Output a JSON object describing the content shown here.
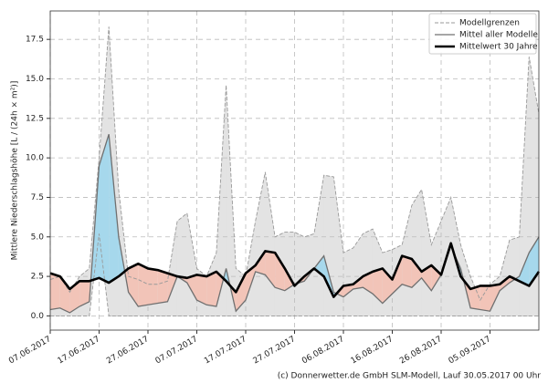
{
  "chart_data": {
    "type": "line",
    "ylabel": "Mittlere Niederschlagshöhe [L / (24h × m²)]",
    "footer": "(c) Donnerwetter.de GmbH SLM-Modell, Lauf 30.05.2017 00 Uhr",
    "x": [
      "07.06.2017",
      "09.06.2017",
      "11.06.2017",
      "13.06.2017",
      "15.06.2017",
      "17.06.2017",
      "19.06.2017",
      "21.06.2017",
      "23.06.2017",
      "25.06.2017",
      "27.06.2017",
      "29.06.2017",
      "01.07.2017",
      "03.07.2017",
      "05.07.2017",
      "07.07.2017",
      "09.07.2017",
      "11.07.2017",
      "13.07.2017",
      "15.07.2017",
      "17.07.2017",
      "19.07.2017",
      "21.07.2017",
      "23.07.2017",
      "25.07.2017",
      "27.07.2017",
      "29.07.2017",
      "31.07.2017",
      "02.08.2017",
      "04.08.2017",
      "06.08.2017",
      "08.08.2017",
      "10.08.2017",
      "12.08.2017",
      "14.08.2017",
      "16.08.2017",
      "18.08.2017",
      "20.08.2017",
      "22.08.2017",
      "24.08.2017",
      "26.08.2017",
      "28.08.2017",
      "30.08.2017",
      "01.09.2017",
      "03.09.2017",
      "05.09.2017",
      "07.09.2017",
      "09.09.2017",
      "11.09.2017",
      "13.09.2017",
      "15.09.2017"
    ],
    "xlim": [
      "07.06.2017",
      "15.09.2017"
    ],
    "xticks": [
      "07.06.2017",
      "17.06.2017",
      "27.06.2017",
      "07.07.2017",
      "17.07.2017",
      "27.07.2017",
      "06.08.2017",
      "16.08.2017",
      "26.08.2017",
      "05.09.2017"
    ],
    "ylim": [
      -0.9,
      19.3
    ],
    "yticks": [
      {
        "value": 0,
        "label": "0.0"
      },
      2.5,
      {
        "value": 5,
        "label": "5.0"
      },
      7.5,
      {
        "value": 10,
        "label": "10.0"
      },
      12.5,
      {
        "value": 15,
        "label": "15.0"
      },
      17.5
    ],
    "grid": true,
    "legend": "upper right",
    "fill_above": "#a6d8ec",
    "fill_below": "#f2c4b8",
    "series": [
      {
        "name": "Modellgrenzen",
        "color": "#999999",
        "dashed": true,
        "area_color": "#e3e3e3",
        "upper": [
          2.3,
          2.5,
          1.5,
          2.5,
          3,
          10,
          18.3,
          8,
          2.5,
          2.3,
          2,
          2,
          2.2,
          6,
          6.5,
          3,
          2.5,
          4,
          14.6,
          3,
          2.5,
          6,
          9.1,
          5,
          5.3,
          5.3,
          5,
          5.2,
          8.9,
          8.8,
          4,
          4.3,
          5.2,
          5.5,
          4,
          4.2,
          4.5,
          7,
          8,
          4.5,
          6,
          7.5,
          4.5,
          2.5,
          1,
          2,
          2.5,
          4.8,
          5,
          16.4,
          12.8
        ],
        "lower": [
          0,
          0,
          0,
          0,
          0,
          5.2,
          0,
          0,
          0,
          0,
          0,
          0,
          0,
          0,
          0,
          0,
          0,
          0,
          0,
          0,
          0,
          0,
          0,
          0,
          0,
          0,
          0,
          0,
          0,
          0,
          0,
          0,
          0,
          0,
          0,
          0,
          0,
          0,
          0,
          0,
          0,
          0,
          0,
          0,
          0,
          0,
          0,
          0,
          0,
          0,
          0
        ]
      },
      {
        "name": "Mittel aller Modelle",
        "color": "#707070",
        "width": 1.3,
        "values": [
          0.4,
          0.5,
          0.2,
          0.6,
          0.9,
          9.5,
          11.5,
          5,
          1.5,
          0.6,
          0.7,
          0.8,
          0.9,
          2.5,
          2.1,
          1,
          0.7,
          0.6,
          3,
          0.3,
          1,
          2.8,
          2.6,
          1.8,
          1.6,
          2,
          2.2,
          3,
          3.8,
          1.5,
          1.2,
          1.7,
          1.8,
          1.4,
          0.8,
          1.4,
          2,
          1.8,
          2.4,
          1.6,
          2.6,
          4.4,
          3,
          0.5,
          0.4,
          0.3,
          1.6,
          2.1,
          2.5,
          4,
          5
        ]
      },
      {
        "name": "Mittelwert 30 Jahre",
        "color": "#000000",
        "width": 2.6,
        "values": [
          2.7,
          2.5,
          1.7,
          2.2,
          2.2,
          2.4,
          2.1,
          2.5,
          3,
          3.3,
          3,
          2.9,
          2.7,
          2.5,
          2.4,
          2.6,
          2.5,
          2.8,
          2.2,
          1.5,
          2.7,
          3.2,
          4.1,
          4,
          3,
          1.9,
          2.5,
          3,
          2.5,
          1.2,
          1.9,
          2,
          2.5,
          2.8,
          3,
          2.3,
          3.8,
          3.6,
          2.8,
          3.2,
          2.6,
          4.6,
          2.5,
          1.7,
          1.9,
          1.9,
          2,
          2.5,
          2.2,
          1.9,
          2.8
        ]
      }
    ]
  }
}
